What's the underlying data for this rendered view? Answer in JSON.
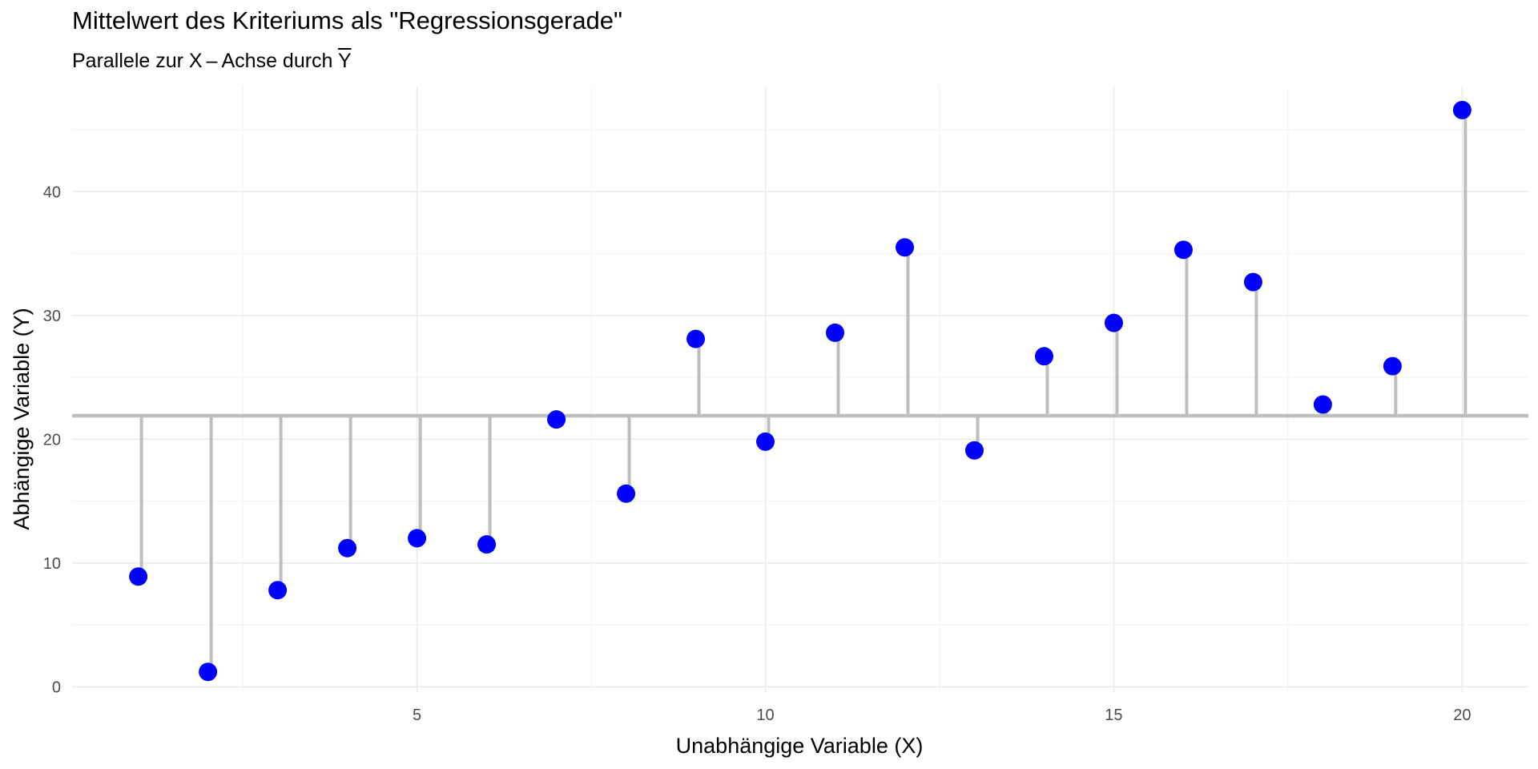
{
  "title": "Mittelwert des Kriteriums als \"Regressionsgerade\"",
  "subtitle": {
    "prefix": "Parallele zur X – Achse durch ",
    "symbol": "Y"
  },
  "colors": {
    "points": "#0000ff",
    "segments": "#bebebe",
    "mean_line": "#bebebe",
    "grid_major": "#ebebeb",
    "grid_minor": "#f3f3f3"
  },
  "chart_data": {
    "type": "scatter",
    "xlabel": "Unabhängige Variable (X)",
    "ylabel": "Abhängige Variable (Y)",
    "xlim": [
      0.05,
      20.95
    ],
    "ylim": [
      -0.5,
      48.5
    ],
    "x_ticks": [
      5,
      10,
      15,
      20
    ],
    "y_ticks": [
      0,
      10,
      20,
      30,
      40
    ],
    "grid": true,
    "mean_y": 21.9,
    "series": [
      {
        "x": [
          1,
          2,
          3,
          4,
          5,
          6,
          7,
          8,
          9,
          10,
          11,
          12,
          13,
          14,
          15,
          16,
          17,
          18,
          19,
          20
        ],
        "values": [
          8.9,
          1.2,
          7.8,
          11.2,
          12.0,
          11.5,
          21.6,
          15.6,
          28.1,
          19.8,
          28.6,
          35.5,
          19.1,
          26.7,
          29.4,
          35.3,
          32.7,
          22.8,
          25.9,
          46.6
        ]
      }
    ]
  }
}
